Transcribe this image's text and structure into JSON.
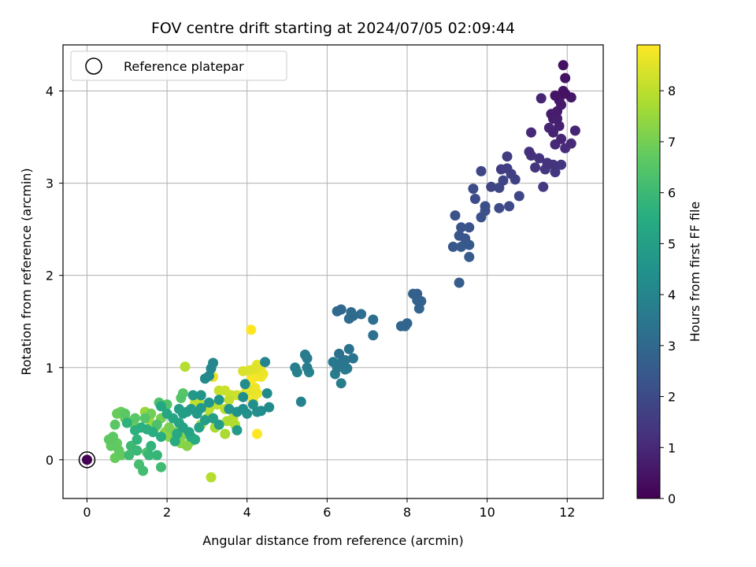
{
  "chart_data": {
    "type": "scatter",
    "title": "FOV centre drift starting at 2024/07/05 02:09:44",
    "xlabel": "Angular distance from reference (arcmin)",
    "ylabel": "Rotation from reference (arcmin)",
    "xlim": [
      -0.6,
      12.9
    ],
    "ylim": [
      -0.42,
      4.5
    ],
    "xticks": [
      0,
      2,
      4,
      6,
      8,
      10,
      12
    ],
    "yticks": [
      0,
      1,
      2,
      3,
      4
    ],
    "grid": true,
    "legend": {
      "placement": "upper-left",
      "entries": [
        "Reference platepar"
      ]
    },
    "reference_point": {
      "x": 0,
      "y": 0,
      "label": "Reference platepar"
    },
    "colorbar": {
      "label": "Hours from first FF file",
      "colormap": "viridis",
      "range": [
        0,
        8.9
      ],
      "ticks": [
        0,
        1,
        2,
        3,
        4,
        5,
        6,
        7,
        8
      ]
    },
    "points": [
      [
        11.9,
        4.28,
        0.4
      ],
      [
        11.95,
        4.14,
        0.45
      ],
      [
        11.9,
        4.0,
        0.5
      ],
      [
        12.1,
        3.93,
        0.55
      ],
      [
        11.7,
        3.95,
        0.5
      ],
      [
        11.8,
        3.9,
        0.6
      ],
      [
        11.85,
        3.85,
        0.65
      ],
      [
        11.95,
        3.97,
        0.4
      ],
      [
        11.6,
        3.75,
        0.7
      ],
      [
        11.75,
        3.7,
        0.75
      ],
      [
        11.8,
        3.62,
        0.8
      ],
      [
        11.65,
        3.55,
        0.85
      ],
      [
        11.55,
        3.6,
        0.9
      ],
      [
        11.85,
        3.48,
        0.95
      ],
      [
        11.7,
        3.42,
        1.0
      ],
      [
        12.1,
        3.43,
        1.05
      ],
      [
        11.95,
        3.38,
        1.1
      ],
      [
        12.2,
        3.57,
        0.9
      ],
      [
        11.35,
        3.92,
        0.9
      ],
      [
        11.1,
        3.55,
        1.0
      ],
      [
        11.75,
        3.78,
        0.7
      ],
      [
        11.65,
        3.7,
        0.75
      ],
      [
        11.05,
        3.34,
        1.2
      ],
      [
        11.1,
        3.3,
        1.25
      ],
      [
        11.3,
        3.27,
        1.3
      ],
      [
        11.2,
        3.17,
        1.35
      ],
      [
        11.45,
        3.15,
        1.4
      ],
      [
        11.5,
        3.22,
        1.3
      ],
      [
        11.65,
        3.2,
        1.35
      ],
      [
        11.85,
        3.2,
        1.4
      ],
      [
        11.7,
        3.12,
        1.45
      ],
      [
        11.4,
        2.96,
        1.5
      ],
      [
        10.5,
        3.29,
        1.55
      ],
      [
        10.35,
        3.15,
        1.6
      ],
      [
        10.5,
        3.16,
        1.65
      ],
      [
        10.6,
        3.1,
        1.7
      ],
      [
        10.7,
        3.04,
        1.75
      ],
      [
        10.4,
        3.03,
        1.8
      ],
      [
        10.1,
        2.96,
        1.8
      ],
      [
        10.3,
        2.95,
        1.85
      ],
      [
        10.8,
        2.86,
        1.9
      ],
      [
        10.55,
        2.75,
        1.95
      ],
      [
        10.3,
        2.73,
        2.0
      ],
      [
        9.85,
        3.13,
        1.85
      ],
      [
        9.65,
        2.94,
        2.0
      ],
      [
        9.7,
        2.83,
        2.05
      ],
      [
        9.95,
        2.75,
        2.1
      ],
      [
        9.95,
        2.7,
        2.15
      ],
      [
        9.85,
        2.63,
        2.2
      ],
      [
        9.2,
        2.65,
        2.25
      ],
      [
        9.35,
        2.52,
        2.3
      ],
      [
        9.55,
        2.52,
        2.3
      ],
      [
        9.3,
        2.43,
        2.35
      ],
      [
        9.45,
        2.4,
        2.4
      ],
      [
        9.15,
        2.31,
        2.45
      ],
      [
        9.35,
        2.31,
        2.5
      ],
      [
        9.55,
        2.33,
        2.5
      ],
      [
        9.55,
        2.2,
        2.55
      ],
      [
        9.3,
        1.92,
        2.6
      ],
      [
        8.15,
        1.8,
        2.7
      ],
      [
        8.25,
        1.8,
        2.75
      ],
      [
        8.35,
        1.72,
        2.8
      ],
      [
        8.3,
        1.64,
        2.85
      ],
      [
        8.25,
        1.73,
        2.8
      ],
      [
        8.0,
        1.48,
        2.9
      ],
      [
        7.85,
        1.45,
        2.95
      ],
      [
        7.95,
        1.45,
        3.0
      ],
      [
        6.35,
        1.63,
        3.0
      ],
      [
        6.25,
        1.61,
        3.05
      ],
      [
        6.6,
        1.6,
        3.1
      ],
      [
        6.65,
        1.56,
        3.1
      ],
      [
        6.55,
        1.53,
        3.15
      ],
      [
        6.85,
        1.58,
        3.2
      ],
      [
        7.15,
        1.52,
        3.25
      ],
      [
        7.15,
        1.35,
        3.3
      ],
      [
        6.3,
        1.15,
        3.3
      ],
      [
        6.55,
        1.2,
        3.35
      ],
      [
        6.65,
        1.1,
        3.4
      ],
      [
        6.45,
        1.08,
        3.45
      ],
      [
        6.35,
        1.05,
        3.5
      ],
      [
        6.25,
        1.0,
        3.55
      ],
      [
        6.5,
        0.99,
        3.6
      ],
      [
        6.15,
        1.06,
        3.6
      ],
      [
        6.45,
        0.98,
        3.65
      ],
      [
        6.2,
        0.93,
        3.7
      ],
      [
        6.35,
        0.83,
        3.75
      ],
      [
        5.45,
        1.14,
        3.65
      ],
      [
        5.5,
        1.1,
        3.7
      ],
      [
        5.5,
        1.0,
        3.75
      ],
      [
        5.2,
        1.0,
        3.8
      ],
      [
        5.25,
        0.95,
        3.85
      ],
      [
        5.55,
        0.95,
        3.9
      ],
      [
        5.35,
        0.63,
        3.95
      ],
      [
        4.45,
        1.06,
        4.0
      ],
      [
        3.15,
        1.05,
        4.05
      ],
      [
        3.1,
        0.99,
        4.1
      ],
      [
        3.05,
        0.91,
        4.15
      ],
      [
        2.95,
        0.88,
        4.2
      ],
      [
        4.5,
        0.72,
        4.2
      ],
      [
        4.55,
        0.57,
        4.25
      ],
      [
        4.35,
        0.53,
        4.3
      ],
      [
        4.25,
        0.52,
        4.35
      ],
      [
        3.95,
        0.82,
        4.3
      ],
      [
        3.9,
        0.68,
        4.35
      ],
      [
        3.9,
        0.55,
        4.4
      ],
      [
        4.0,
        0.5,
        4.45
      ],
      [
        4.15,
        0.6,
        4.4
      ],
      [
        3.75,
        0.52,
        4.5
      ],
      [
        3.55,
        0.55,
        4.55
      ],
      [
        3.3,
        0.65,
        4.6
      ],
      [
        3.05,
        0.62,
        4.65
      ],
      [
        2.85,
        0.7,
        4.6
      ],
      [
        2.65,
        0.7,
        4.7
      ],
      [
        2.85,
        0.56,
        4.75
      ],
      [
        2.75,
        0.5,
        4.8
      ],
      [
        2.6,
        0.55,
        4.85
      ],
      [
        2.5,
        0.52,
        4.9
      ],
      [
        2.4,
        0.5,
        4.95
      ],
      [
        2.3,
        0.55,
        5.0
      ],
      [
        3.75,
        0.32,
        4.85
      ],
      [
        3.3,
        0.38,
        4.9
      ],
      [
        3.15,
        0.45,
        4.95
      ],
      [
        2.95,
        0.43,
        5.0
      ],
      [
        2.8,
        0.35,
        5.05
      ],
      [
        2.55,
        0.3,
        5.1
      ],
      [
        2.4,
        0.35,
        5.1
      ],
      [
        2.3,
        0.4,
        5.15
      ],
      [
        2.15,
        0.45,
        5.2
      ],
      [
        2.0,
        0.5,
        5.25
      ],
      [
        1.85,
        0.58,
        5.3
      ],
      [
        2.25,
        0.28,
        5.35
      ],
      [
        2.6,
        0.25,
        5.4
      ],
      [
        2.7,
        0.22,
        5.4
      ],
      [
        2.2,
        0.2,
        5.45
      ],
      [
        1.85,
        0.25,
        5.5
      ],
      [
        1.65,
        0.3,
        5.55
      ],
      [
        1.5,
        0.33,
        5.6
      ],
      [
        1.35,
        0.35,
        5.6
      ],
      [
        1.2,
        0.32,
        5.65
      ],
      [
        1.0,
        0.4,
        5.7
      ],
      [
        1.25,
        0.22,
        5.75
      ],
      [
        1.6,
        0.15,
        5.8
      ],
      [
        1.75,
        0.05,
        5.85
      ],
      [
        1.55,
        0.05,
        5.9
      ],
      [
        1.25,
        0.1,
        5.95
      ],
      [
        1.1,
        0.15,
        6.0
      ],
      [
        1.05,
        0.05,
        6.05
      ],
      [
        1.85,
        -0.08,
        6.1
      ],
      [
        1.4,
        -0.12,
        6.15
      ],
      [
        1.3,
        -0.05,
        6.2
      ],
      [
        1.5,
        0.08,
        6.25
      ],
      [
        1.75,
        0.38,
        6.3
      ],
      [
        1.8,
        0.62,
        6.35
      ],
      [
        2.0,
        0.6,
        6.4
      ],
      [
        2.35,
        0.67,
        6.45
      ],
      [
        2.4,
        0.72,
        6.5
      ],
      [
        1.45,
        0.45,
        6.5
      ],
      [
        1.2,
        0.45,
        6.55
      ],
      [
        0.95,
        0.5,
        6.6
      ],
      [
        0.7,
        0.38,
        6.6
      ],
      [
        0.65,
        0.25,
        6.65
      ],
      [
        0.55,
        0.22,
        6.65
      ],
      [
        0.6,
        0.15,
        6.7
      ],
      [
        0.75,
        0.18,
        6.75
      ],
      [
        0.8,
        0.1,
        6.7
      ],
      [
        0.85,
        0.05,
        6.75
      ],
      [
        0.7,
        0.02,
        6.8
      ],
      [
        0.75,
        0.5,
        6.8
      ],
      [
        0.85,
        0.52,
        6.85
      ],
      [
        0.95,
        0.45,
        6.85
      ],
      [
        1.15,
        0.4,
        6.9
      ],
      [
        1.6,
        0.5,
        6.95
      ],
      [
        1.85,
        0.45,
        7.0
      ],
      [
        2.05,
        0.35,
        7.05
      ],
      [
        2.2,
        0.3,
        7.1
      ],
      [
        2.4,
        0.27,
        7.15
      ],
      [
        2.6,
        0.2,
        7.2
      ],
      [
        2.5,
        0.15,
        7.25
      ],
      [
        2.35,
        0.18,
        7.3
      ],
      [
        2.05,
        0.25,
        7.3
      ],
      [
        1.95,
        0.3,
        7.35
      ],
      [
        1.7,
        0.35,
        7.4
      ],
      [
        1.45,
        0.52,
        7.45
      ],
      [
        1.55,
        0.45,
        7.5
      ],
      [
        1.6,
        0.38,
        7.55
      ],
      [
        2.85,
        0.38,
        7.6
      ],
      [
        3.0,
        0.45,
        7.65
      ],
      [
        3.2,
        0.35,
        7.7
      ],
      [
        3.45,
        0.28,
        7.75
      ],
      [
        3.5,
        0.42,
        7.8
      ],
      [
        3.7,
        0.38,
        7.85
      ],
      [
        3.65,
        0.45,
        7.9
      ],
      [
        3.45,
        0.55,
        7.95
      ],
      [
        3.25,
        0.6,
        8.0
      ],
      [
        3.05,
        0.55,
        8.0
      ],
      [
        2.85,
        0.6,
        8.05
      ],
      [
        2.7,
        0.62,
        8.1
      ],
      [
        3.55,
        0.65,
        8.1
      ],
      [
        3.3,
        0.75,
        8.15
      ],
      [
        3.45,
        0.75,
        8.2
      ],
      [
        3.6,
        0.7,
        8.2
      ],
      [
        3.75,
        0.7,
        8.25
      ],
      [
        2.45,
        1.01,
        7.9
      ],
      [
        3.1,
        -0.19,
        7.9
      ],
      [
        3.9,
        0.96,
        8.4
      ],
      [
        4.05,
        0.97,
        8.45
      ],
      [
        4.2,
        0.99,
        8.5
      ],
      [
        4.25,
        1.03,
        8.55
      ],
      [
        4.3,
        1.0,
        8.6
      ],
      [
        4.35,
        0.96,
        8.65
      ],
      [
        4.4,
        0.93,
        8.7
      ],
      [
        4.3,
        0.92,
        8.75
      ],
      [
        4.2,
        0.9,
        8.8
      ],
      [
        4.35,
        0.9,
        8.8
      ],
      [
        4.1,
        0.87,
        8.85
      ],
      [
        4.2,
        0.78,
        8.7
      ],
      [
        4.05,
        0.75,
        8.6
      ],
      [
        4.25,
        0.72,
        8.65
      ],
      [
        3.95,
        0.72,
        8.55
      ],
      [
        4.15,
        0.65,
        8.7
      ],
      [
        3.15,
        0.9,
        8.6
      ],
      [
        4.1,
        1.41,
        8.9
      ],
      [
        4.25,
        0.28,
        8.9
      ]
    ]
  }
}
